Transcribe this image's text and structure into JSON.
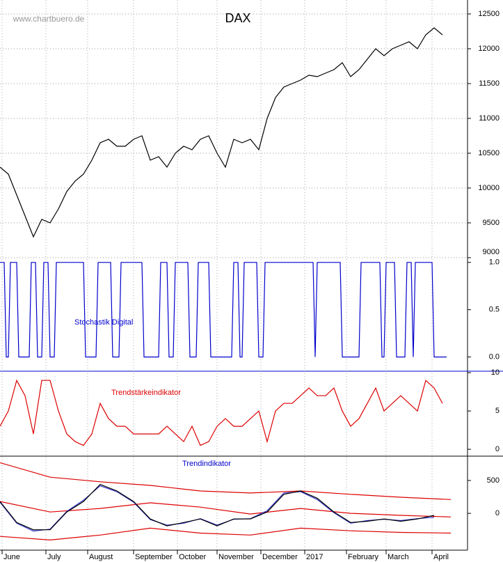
{
  "chart_data": [
    {
      "type": "line",
      "title": "DAX",
      "annotation": "www.chartbuero.de",
      "grid": true,
      "xlim": [
        0,
        224
      ],
      "ylim": [
        9000,
        12700
      ],
      "yticks": [
        9000,
        9500,
        10000,
        10500,
        11000,
        11500,
        12000,
        12500
      ],
      "series": [
        {
          "color": "#000000",
          "x": [
            0,
            4,
            8,
            12,
            16,
            20,
            24,
            28,
            32,
            36,
            40,
            44,
            48,
            52,
            56,
            60,
            64,
            68,
            72,
            76,
            80,
            84,
            88,
            92,
            96,
            100,
            104,
            108,
            112,
            116,
            120,
            124,
            128,
            132,
            136,
            140,
            144,
            148,
            152,
            156,
            160,
            164,
            168,
            172,
            176,
            180,
            184,
            188,
            192,
            196,
            200,
            204,
            208,
            212
          ],
          "values": [
            10300,
            10200,
            9900,
            9600,
            9300,
            9550,
            9500,
            9700,
            9950,
            10100,
            10200,
            10400,
            10650,
            10700,
            10600,
            10600,
            10700,
            10750,
            10400,
            10450,
            10300,
            10500,
            10600,
            10550,
            10700,
            10750,
            10500,
            10300,
            10700,
            10650,
            10700,
            10550,
            11000,
            11300,
            11450,
            11500,
            11550,
            11620,
            11600,
            11650,
            11700,
            11800,
            11600,
            11700,
            11850,
            12000,
            11900,
            12000,
            12050,
            12100,
            12000,
            12200,
            12300,
            12200
          ]
        }
      ]
    },
    {
      "type": "line",
      "label": "Stochastik Digital",
      "grid": false,
      "xlim": [
        0,
        224
      ],
      "ylim": [
        -0.15,
        1.05
      ],
      "yticks": [
        {
          "value": 0,
          "label": "0.0"
        },
        {
          "value": 0.5,
          "label": "0.5"
        },
        {
          "value": 1,
          "label": "1.0"
        }
      ],
      "series": [
        {
          "color": "#0000cc",
          "x": [
            0,
            2,
            3,
            4,
            5,
            8,
            9,
            14,
            15,
            17,
            18,
            20,
            21,
            23,
            24,
            26,
            27,
            40,
            41,
            46,
            47,
            53,
            54,
            57,
            58,
            68,
            69,
            76,
            77,
            80,
            81,
            83,
            84,
            90,
            91,
            94,
            95,
            100,
            101,
            111,
            112,
            114,
            115,
            116,
            117,
            123,
            124,
            126,
            127,
            150,
            151,
            152,
            163,
            164,
            172,
            173,
            182,
            183,
            184,
            185,
            189,
            190,
            194,
            195,
            197,
            198,
            199,
            207,
            208,
            214
          ],
          "values": [
            1,
            1,
            0,
            0,
            1,
            1,
            0,
            0,
            1,
            1,
            0,
            0,
            1,
            1,
            0,
            0,
            1,
            1,
            0,
            0,
            1,
            1,
            0,
            0,
            1,
            1,
            0,
            0,
            1,
            1,
            0,
            0,
            1,
            1,
            0,
            0,
            1,
            1,
            0,
            0,
            1,
            1,
            0,
            0,
            1,
            1,
            0,
            0,
            1,
            1,
            0,
            1,
            1,
            0,
            0,
            1,
            1,
            0,
            0,
            1,
            1,
            0,
            0,
            1,
            1,
            0,
            1,
            1,
            0,
            0
          ]
        }
      ]
    },
    {
      "type": "line",
      "label": "Trendstärkeindikator",
      "grid": false,
      "xlim": [
        0,
        224
      ],
      "ylim": [
        -0.9,
        10.2
      ],
      "yticks": [
        0,
        5,
        10
      ],
      "series": [
        {
          "color": "#dd0000",
          "x": [
            0,
            4,
            8,
            12,
            16,
            20,
            24,
            28,
            32,
            36,
            40,
            44,
            48,
            52,
            56,
            60,
            64,
            68,
            72,
            76,
            80,
            84,
            88,
            92,
            96,
            100,
            104,
            108,
            112,
            116,
            120,
            124,
            128,
            132,
            136,
            140,
            144,
            148,
            152,
            156,
            160,
            164,
            168,
            172,
            176,
            180,
            184,
            188,
            192,
            196,
            200,
            204,
            208,
            212
          ],
          "values": [
            3,
            5,
            9,
            7,
            2,
            9,
            9,
            5,
            2,
            1,
            0.5,
            2,
            6,
            4,
            3,
            3,
            2,
            2,
            2,
            2,
            3,
            2,
            1,
            3,
            0.5,
            1,
            3,
            4,
            3,
            3,
            4,
            5,
            1,
            5,
            6,
            6,
            7,
            8,
            7,
            7,
            8,
            5,
            3,
            4,
            6,
            8,
            5,
            6,
            7,
            6,
            5,
            9,
            8,
            6
          ]
        }
      ]
    },
    {
      "type": "line",
      "label": "Trendindikator",
      "grid": false,
      "xlim": [
        0,
        224
      ],
      "ylim": [
        -560,
        870
      ],
      "yticks": [
        0,
        500
      ],
      "xticks": [
        {
          "value": 1,
          "label": "June"
        },
        {
          "value": 22,
          "label": "July"
        },
        {
          "value": 42,
          "label": "August"
        },
        {
          "value": 64,
          "label": "September"
        },
        {
          "value": 85,
          "label": "October"
        },
        {
          "value": 104,
          "label": "November"
        },
        {
          "value": 125,
          "label": "December"
        },
        {
          "value": 146,
          "label": "2017"
        },
        {
          "value": 166,
          "label": "February"
        },
        {
          "value": 185,
          "label": "March"
        },
        {
          "value": 207,
          "label": "April"
        }
      ],
      "series": [
        {
          "color": "#dd0000",
          "x": [
            0,
            24,
            48,
            72,
            96,
            120,
            144,
            168,
            192,
            216
          ],
          "values": [
            770,
            550,
            480,
            425,
            340,
            310,
            340,
            290,
            245,
            210
          ]
        },
        {
          "color": "#dd0000",
          "x": [
            0,
            24,
            48,
            72,
            96,
            120,
            144,
            168,
            192,
            216
          ],
          "values": [
            180,
            20,
            75,
            160,
            95,
            -10,
            75,
            0,
            -30,
            -55
          ]
        },
        {
          "color": "#dd0000",
          "x": [
            0,
            24,
            48,
            72,
            96,
            120,
            144,
            168,
            192,
            216
          ],
          "values": [
            -350,
            -405,
            -330,
            -225,
            -300,
            -330,
            -225,
            -265,
            -290,
            -300
          ]
        },
        {
          "color": "#3333cc",
          "x": [
            0,
            8,
            16,
            24,
            32,
            40,
            48,
            56,
            64,
            72,
            80,
            88,
            96,
            104,
            112,
            120,
            128,
            136,
            144,
            152,
            160,
            168,
            176,
            184,
            192,
            200,
            208
          ],
          "values": [
            170,
            -150,
            -270,
            -240,
            30,
            200,
            420,
            330,
            170,
            -95,
            -180,
            -150,
            -80,
            -180,
            -90,
            -80,
            40,
            310,
            330,
            210,
            10,
            -150,
            -110,
            -90,
            -110,
            -80,
            -60
          ]
        },
        {
          "color": "#000000",
          "x": [
            0,
            8,
            16,
            24,
            32,
            40,
            48,
            56,
            64,
            72,
            80,
            88,
            96,
            104,
            112,
            120,
            128,
            136,
            144,
            152,
            160,
            168,
            176,
            184,
            192,
            200,
            208
          ],
          "values": [
            180,
            -140,
            -250,
            -250,
            20,
            180,
            440,
            340,
            180,
            -85,
            -190,
            -140,
            -85,
            -190,
            -85,
            -85,
            20,
            290,
            340,
            230,
            20,
            -140,
            -120,
            -85,
            -120,
            -85,
            -30
          ]
        }
      ]
    }
  ]
}
